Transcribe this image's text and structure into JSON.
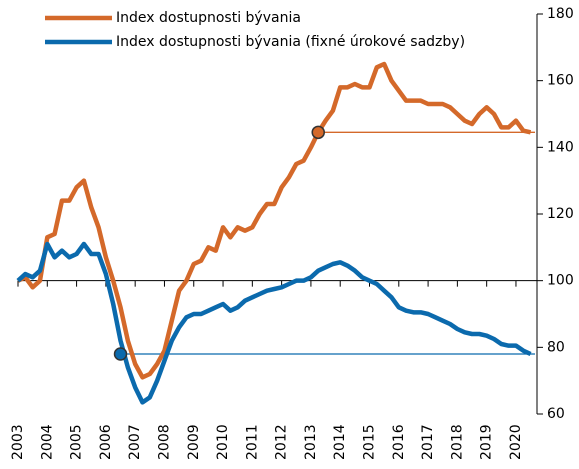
{
  "chart_data": {
    "type": "line",
    "x": [
      2003,
      2003.25,
      2003.5,
      2003.75,
      2004,
      2004.25,
      2004.5,
      2004.75,
      2005,
      2005.25,
      2005.5,
      2005.75,
      2006,
      2006.25,
      2006.5,
      2006.75,
      2007,
      2007.25,
      2007.5,
      2007.75,
      2008,
      2008.25,
      2008.5,
      2008.75,
      2009,
      2009.25,
      2009.5,
      2009.75,
      2010,
      2010.25,
      2010.5,
      2010.75,
      2011,
      2011.25,
      2011.5,
      2011.75,
      2012,
      2012.25,
      2012.5,
      2012.75,
      2013,
      2013.25,
      2013.5,
      2013.75,
      2014,
      2014.25,
      2014.5,
      2014.75,
      2015,
      2015.25,
      2015.5,
      2015.75,
      2016,
      2016.25,
      2016.5,
      2016.75,
      2017,
      2017.25,
      2017.5,
      2017.75,
      2018,
      2018.25,
      2018.5,
      2018.75,
      2019,
      2019.25,
      2019.5,
      2019.75,
      2020,
      2020.25,
      2020.5
    ],
    "series": [
      {
        "name": "Index dostupnosti bývania",
        "color": "#d4692a",
        "values": [
          100,
          101,
          98,
          100,
          113,
          114,
          124,
          124,
          128,
          130,
          122,
          116,
          107,
          100,
          92,
          82,
          75,
          71,
          72,
          75,
          79,
          88,
          97,
          100,
          105,
          106,
          110,
          109,
          116,
          113,
          116,
          115,
          116,
          120,
          123,
          123,
          128,
          131,
          135,
          136,
          140,
          144.5,
          148,
          151,
          158,
          158,
          159,
          158,
          158,
          164,
          165,
          160,
          157,
          154,
          154,
          154,
          153,
          153,
          153,
          152,
          150,
          148,
          147,
          150,
          152,
          150,
          146,
          146,
          148,
          145,
          144.5
        ]
      },
      {
        "name": "Index dostupnosti bývania (fixné úrokové sadzby)",
        "color": "#0b6aad",
        "values": [
          100,
          102,
          101,
          103,
          111,
          107,
          109,
          107,
          108,
          111,
          108,
          108,
          102,
          93,
          82,
          74,
          68,
          63.5,
          65,
          70,
          76,
          82,
          86,
          89,
          90,
          90,
          91,
          92,
          93,
          91,
          92,
          94,
          95,
          96,
          97,
          97.5,
          98,
          99,
          100,
          100,
          101,
          103,
          104,
          105,
          105.5,
          104.5,
          103,
          101,
          100,
          99,
          97,
          95,
          92,
          91,
          90.5,
          90.5,
          90,
          89,
          88,
          87,
          85.5,
          84.5,
          84,
          84,
          83.5,
          82.5,
          81,
          80.5,
          80.5,
          79,
          78
        ]
      }
    ],
    "reference_lines": [
      {
        "value": 144.5,
        "from": 2013.25,
        "color": "#d4692a"
      },
      {
        "value": 78,
        "from": 2006.5,
        "color": "#0b6aad"
      }
    ],
    "xlim": [
      2003,
      2020.65
    ],
    "xticks": [
      2003,
      2004,
      2005,
      2006,
      2007,
      2008,
      2009,
      2010,
      2011,
      2012,
      2013,
      2014,
      2015,
      2016,
      2017,
      2018,
      2019,
      2020
    ],
    "ylim": [
      60,
      180
    ],
    "yticks": [
      60,
      80,
      100,
      120,
      140,
      160,
      180
    ],
    "baseline": 100,
    "y_axis_side": "right"
  }
}
